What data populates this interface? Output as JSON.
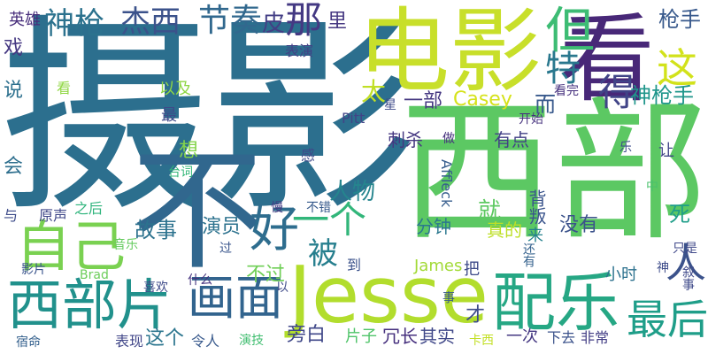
{
  "colors": {
    "background": "#ffffff",
    "palette": [
      "#440154",
      "#46327e",
      "#365c8d",
      "#277f8e",
      "#1fa187",
      "#4ac16d",
      "#a0da39",
      "#fde725"
    ]
  },
  "words": [
    {
      "text": "摄影",
      "color": "#2c6f8e"
    },
    {
      "text": "西部",
      "color": "#5cc863"
    },
    {
      "text": "电影",
      "color": "#c8df2a"
    },
    {
      "text": "看",
      "color": "#482878"
    },
    {
      "text": "不",
      "color": "#31678e"
    },
    {
      "text": "Jesse",
      "color": "#b2dd2d"
    },
    {
      "text": "配乐",
      "color": "#26a784"
    },
    {
      "text": "西部片",
      "color": "#21918c"
    },
    {
      "text": "自己",
      "color": "#7ad151"
    },
    {
      "text": "画面",
      "color": "#32648e"
    },
    {
      "text": "好",
      "color": "#2e6d8e"
    },
    {
      "text": "人",
      "color": "#3b528b"
    },
    {
      "text": "最后",
      "color": "#1f9e89"
    },
    {
      "text": "但",
      "color": "#3dbc74"
    },
    {
      "text": "这",
      "color": "#d2e21b"
    },
    {
      "text": "那",
      "color": "#443983"
    },
    {
      "text": "特",
      "color": "#2a788e"
    },
    {
      "text": "得",
      "color": "#414487"
    },
    {
      "text": "神枪",
      "color": "#2c728e"
    },
    {
      "text": "杰西",
      "color": "#3b528b"
    },
    {
      "text": "节奏",
      "color": "#31688e"
    },
    {
      "text": "皮",
      "color": "#433e85"
    },
    {
      "text": "里",
      "color": "#453781"
    },
    {
      "text": "枪手",
      "color": "#38598c"
    },
    {
      "text": "英雄",
      "color": "#472d7b"
    },
    {
      "text": "戏",
      "color": "#453882"
    },
    {
      "text": "说",
      "color": "#2d708e"
    },
    {
      "text": "会",
      "color": "#2e6f8e"
    },
    {
      "text": "与",
      "color": "#3e4c8a"
    },
    {
      "text": "原声",
      "color": "#3f4788"
    },
    {
      "text": "之后",
      "color": "#2fb47c"
    },
    {
      "text": "影片",
      "color": "#3a548c"
    },
    {
      "text": "音乐",
      "color": "#65cb5e"
    },
    {
      "text": "宿命",
      "color": "#34608d"
    },
    {
      "text": "表现",
      "color": "#404688"
    },
    {
      "text": "令人",
      "color": "#38598c"
    },
    {
      "text": "演技",
      "color": "#42be71"
    },
    {
      "text": "这个",
      "color": "#2b758e"
    },
    {
      "text": "以及",
      "color": "#8ed645"
    },
    {
      "text": "最",
      "color": "#3e4a89"
    },
    {
      "text": "看",
      "color": "#90d743"
    },
    {
      "text": "表演",
      "color": "#424186"
    },
    {
      "text": "一部",
      "color": "#453882"
    },
    {
      "text": "太",
      "color": "#c0df25"
    },
    {
      "text": "而",
      "color": "#38598c"
    },
    {
      "text": "Casey",
      "color": "#d5e21a"
    },
    {
      "text": "神枪手",
      "color": "#1f968b"
    },
    {
      "text": "人物",
      "color": "#25858e"
    },
    {
      "text": "一个",
      "color": "#32b67a"
    },
    {
      "text": "被",
      "color": "#277f8e"
    },
    {
      "text": "就",
      "color": "#5ec962"
    },
    {
      "text": "分钟",
      "color": "#2a778e"
    },
    {
      "text": "真的",
      "color": "#bddf26"
    },
    {
      "text": "没有",
      "color": "#3b528b"
    },
    {
      "text": "故事",
      "color": "#2c728e"
    },
    {
      "text": "演员",
      "color": "#2c728e"
    },
    {
      "text": "想",
      "color": "#84d44b"
    },
    {
      "text": "感",
      "color": "#3f4889"
    },
    {
      "text": "不错",
      "color": "#375a8c"
    },
    {
      "text": "台词",
      "color": "#35b779"
    },
    {
      "text": "刺杀",
      "color": "#453781"
    },
    {
      "text": "有点",
      "color": "#424086"
    },
    {
      "text": "做",
      "color": "#46307e"
    },
    {
      "text": "Pitt",
      "color": "#414487"
    },
    {
      "text": "星",
      "color": "#3e4a89"
    },
    {
      "text": "开始",
      "color": "#46327e"
    },
    {
      "text": "看完",
      "color": "#46307e"
    },
    {
      "text": "Affleck",
      "color": "#365d8d"
    },
    {
      "text": "背叛",
      "color": "#3a548c"
    },
    {
      "text": "来",
      "color": "#26828e"
    },
    {
      "text": "还有",
      "color": "#34618d"
    },
    {
      "text": "死",
      "color": "#1f9e89"
    },
    {
      "text": "让",
      "color": "#414487"
    },
    {
      "text": "中",
      "color": "#4ac16d"
    },
    {
      "text": "叙事",
      "color": "#3e4989"
    },
    {
      "text": "只是",
      "color": "#3f4889"
    },
    {
      "text": "小时",
      "color": "#2c718e"
    },
    {
      "text": "才",
      "color": "#3e4c8a"
    },
    {
      "text": "把",
      "color": "#3e4a89"
    },
    {
      "text": "James",
      "color": "#a2da37"
    },
    {
      "text": "到",
      "color": "#3b528b"
    },
    {
      "text": "不过",
      "color": "#70cf57"
    },
    {
      "text": "慢",
      "color": "#443a83"
    },
    {
      "text": "过",
      "color": "#39558c"
    },
    {
      "text": "Brad",
      "color": "#6ccd5a"
    },
    {
      "text": "喜欢",
      "color": "#3e4a89"
    },
    {
      "text": "什么",
      "color": "#46337f"
    },
    {
      "text": "旁白",
      "color": "#3f4788"
    },
    {
      "text": "片子",
      "color": "#50c46a"
    },
    {
      "text": "冗长",
      "color": "#46307e"
    },
    {
      "text": "其实",
      "color": "#3f4788"
    },
    {
      "text": "卡西",
      "color": "#c2df23"
    },
    {
      "text": "一次",
      "color": "#453882"
    },
    {
      "text": "下去",
      "color": "#3b528b"
    },
    {
      "text": "非常",
      "color": "#433e85"
    },
    {
      "text": "事",
      "color": "#38598c"
    },
    {
      "text": "神",
      "color": "#3e4c8a"
    },
    {
      "text": "乐",
      "color": "#3e4c8a"
    },
    {
      "text": "以",
      "color": "#3e4a89"
    }
  ]
}
